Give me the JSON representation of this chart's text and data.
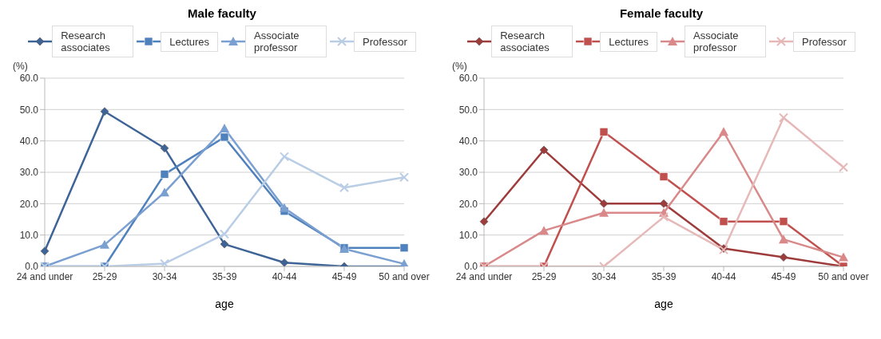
{
  "chart_data": [
    {
      "type": "line",
      "title": "Male faculty",
      "xlabel": "age",
      "ylabel": "(%)",
      "categories": [
        "24 and under",
        "25-29",
        "30-34",
        "35-39",
        "40-44",
        "45-49",
        "50 and over"
      ],
      "ylim": [
        0,
        60
      ],
      "yticks": [
        {
          "value": 0,
          "label": "0.0"
        },
        {
          "value": 10,
          "label": "10.0"
        },
        {
          "value": 20,
          "label": "20.0"
        },
        {
          "value": 30,
          "label": "30.0"
        },
        {
          "value": 40,
          "label": "40.0"
        },
        {
          "value": 50,
          "label": "50.0"
        },
        {
          "value": 60,
          "label": "60.0"
        }
      ],
      "grid": "y",
      "legend": "top",
      "series": [
        {
          "name": "Research associates",
          "color": "#3e6497",
          "marker": "diamond",
          "values": [
            4.9,
            49.4,
            37.7,
            7.1,
            1.2,
            0,
            0
          ]
        },
        {
          "name": "Lectures",
          "color": "#4f81bd",
          "marker": "square",
          "values": [
            0,
            0,
            29.4,
            41.2,
            17.6,
            5.9,
            5.9
          ]
        },
        {
          "name": "Associate professor",
          "color": "#7a9fd1",
          "marker": "triangle",
          "values": [
            0,
            6.9,
            23.6,
            44.0,
            18.6,
            5.6,
            0.8
          ]
        },
        {
          "name": "Professor",
          "color": "#b9cde5",
          "marker": "cross",
          "values": [
            0,
            0,
            0.9,
            10.3,
            35.0,
            25.1,
            28.4
          ]
        }
      ]
    },
    {
      "type": "line",
      "title": "Female faculty",
      "xlabel": "age",
      "ylabel": "(%)",
      "categories": [
        "24 and under",
        "25-29",
        "30-34",
        "35-39",
        "40-44",
        "45-49",
        "50 and over"
      ],
      "ylim": [
        0,
        60
      ],
      "yticks": [
        {
          "value": 0,
          "label": "0.0"
        },
        {
          "value": 10,
          "label": "10.0"
        },
        {
          "value": 20,
          "label": "20.0"
        },
        {
          "value": 30,
          "label": "30.0"
        },
        {
          "value": 40,
          "label": "40.0"
        },
        {
          "value": 50,
          "label": "50.0"
        },
        {
          "value": 60,
          "label": "60.0"
        }
      ],
      "grid": "y",
      "legend": "top",
      "series": [
        {
          "name": "Research associates",
          "color": "#9e3b3b",
          "marker": "diamond",
          "values": [
            14.3,
            37.1,
            20.0,
            20.0,
            5.7,
            2.9,
            0
          ]
        },
        {
          "name": "Lectures",
          "color": "#c0504d",
          "marker": "square",
          "values": [
            0,
            0,
            42.9,
            28.6,
            14.3,
            14.3,
            0
          ]
        },
        {
          "name": "Associate professor",
          "color": "#d9898a",
          "marker": "triangle",
          "values": [
            0,
            11.4,
            17.1,
            17.1,
            42.9,
            8.6,
            2.9
          ]
        },
        {
          "name": "Professor",
          "color": "#e6b9b8",
          "marker": "cross",
          "values": [
            0,
            0,
            0,
            15.8,
            5.3,
            47.4,
            31.6
          ]
        }
      ]
    }
  ]
}
